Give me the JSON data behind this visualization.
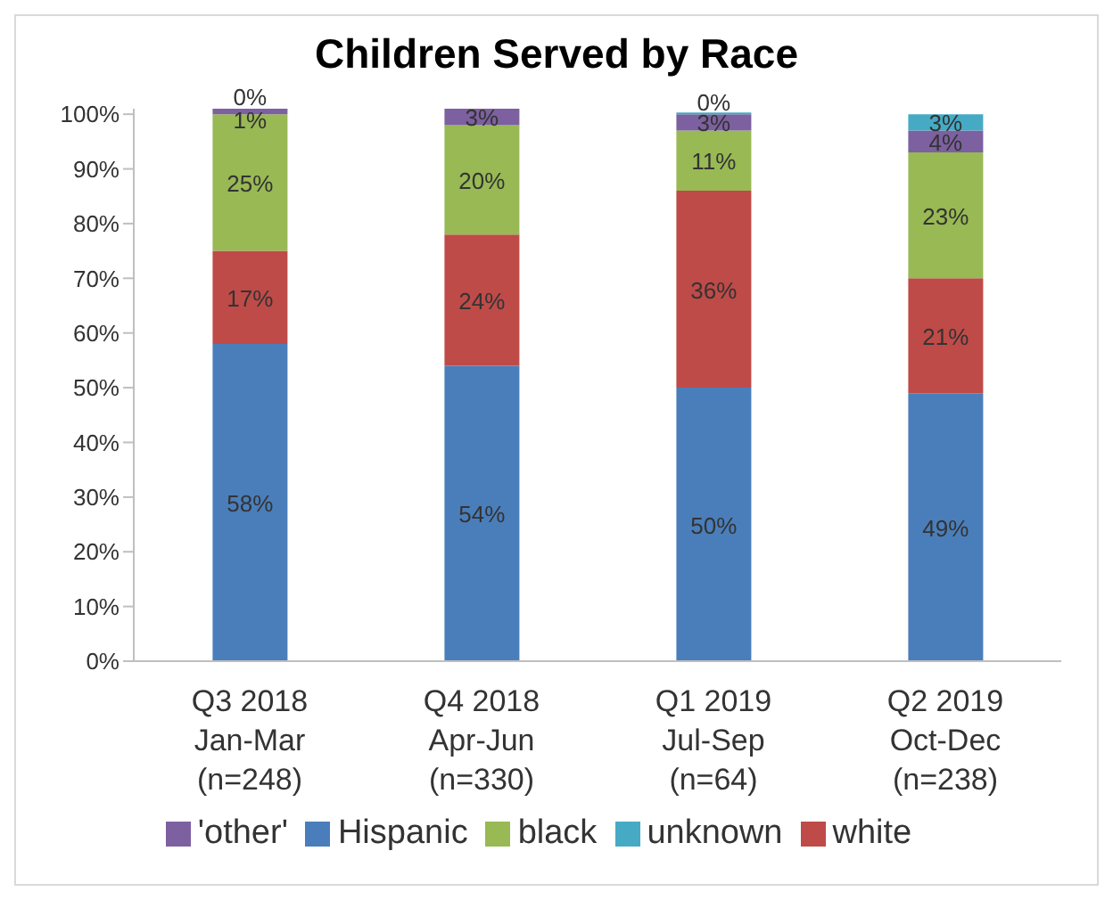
{
  "chart_data": {
    "type": "bar",
    "title": "Children Served by Race",
    "stacked": true,
    "legend": "bottom",
    "grid": false,
    "categories": [
      "Q3 2018\nJan-Mar\n(n=248)",
      "Q4 2018\nApr-Jun\n(n=330)",
      "Q1 2019\nJul-Sep\n(n=64)",
      "Q2 2019\nOct-Dec\n(n=238)"
    ],
    "ylim": [
      0,
      101
    ],
    "yticks": [
      {
        "value": 0,
        "label": "0%"
      },
      {
        "value": 10,
        "label": "10%"
      },
      {
        "value": 20,
        "label": "20%"
      },
      {
        "value": 30,
        "label": "30%"
      },
      {
        "value": 40,
        "label": "40%"
      },
      {
        "value": 50,
        "label": "50%"
      },
      {
        "value": 60,
        "label": "60%"
      },
      {
        "value": 70,
        "label": "70%"
      },
      {
        "value": 80,
        "label": "80%"
      },
      {
        "value": 90,
        "label": "90%"
      },
      {
        "value": 100,
        "label": "100%"
      }
    ],
    "series": [
      {
        "name": "Hispanic",
        "color": "#4a7ebb",
        "values": [
          58,
          54,
          50,
          49
        ],
        "value_labels": [
          "58%",
          "54%",
          "50%",
          "49%"
        ]
      },
      {
        "name": "white",
        "color": "#be4b48",
        "values": [
          17,
          24,
          36,
          21
        ],
        "value_labels": [
          "17%",
          "24%",
          "36%",
          "21%"
        ]
      },
      {
        "name": "black",
        "color": "#98b954",
        "values": [
          25,
          20,
          11,
          23
        ],
        "value_labels": [
          "25%",
          "20%",
          "11%",
          "23%"
        ]
      },
      {
        "name": "'other'",
        "color": "#7d60a0",
        "values": [
          1,
          3,
          3,
          4
        ],
        "value_labels": [
          "1%",
          "3%",
          "3%",
          "4%"
        ]
      },
      {
        "name": "unknown",
        "color": "#46aac5",
        "values": [
          0,
          null,
          0,
          3
        ],
        "value_labels": [
          "0%",
          null,
          "0%",
          "3%"
        ]
      }
    ]
  }
}
